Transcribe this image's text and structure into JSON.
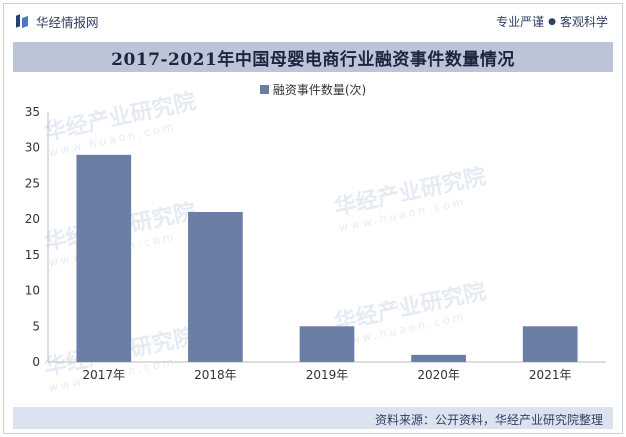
{
  "header": {
    "brand_name": "华经情报网",
    "slogan_left": "专业严谨",
    "slogan_dot": "●",
    "slogan_right": "客观科学"
  },
  "watermark": {
    "text": "华经产业研究院",
    "url": "www.huaon.com"
  },
  "footer": {
    "source": "资料来源：公开资料，华经产业研究院整理"
  },
  "colors": {
    "bar": "#6b7ea6",
    "title_band": "#bcc5d8",
    "footer_band": "#dde3ee"
  },
  "chart_data": {
    "type": "bar",
    "title": "2017-2021年中国母婴电商行业融资事件数量情况",
    "legend": {
      "entries": [
        "融资事件数量(次)"
      ],
      "placement": "top-center"
    },
    "categories": [
      "2017年",
      "2018年",
      "2019年",
      "2020年",
      "2021年"
    ],
    "series": [
      {
        "name": "融资事件数量(次)",
        "values": [
          29,
          21,
          5,
          1,
          5
        ]
      }
    ],
    "ylim": [
      0,
      35
    ],
    "yticks": [
      0,
      5,
      10,
      15,
      20,
      25,
      30,
      35
    ],
    "xlabel": "",
    "ylabel": "",
    "grid": false
  }
}
